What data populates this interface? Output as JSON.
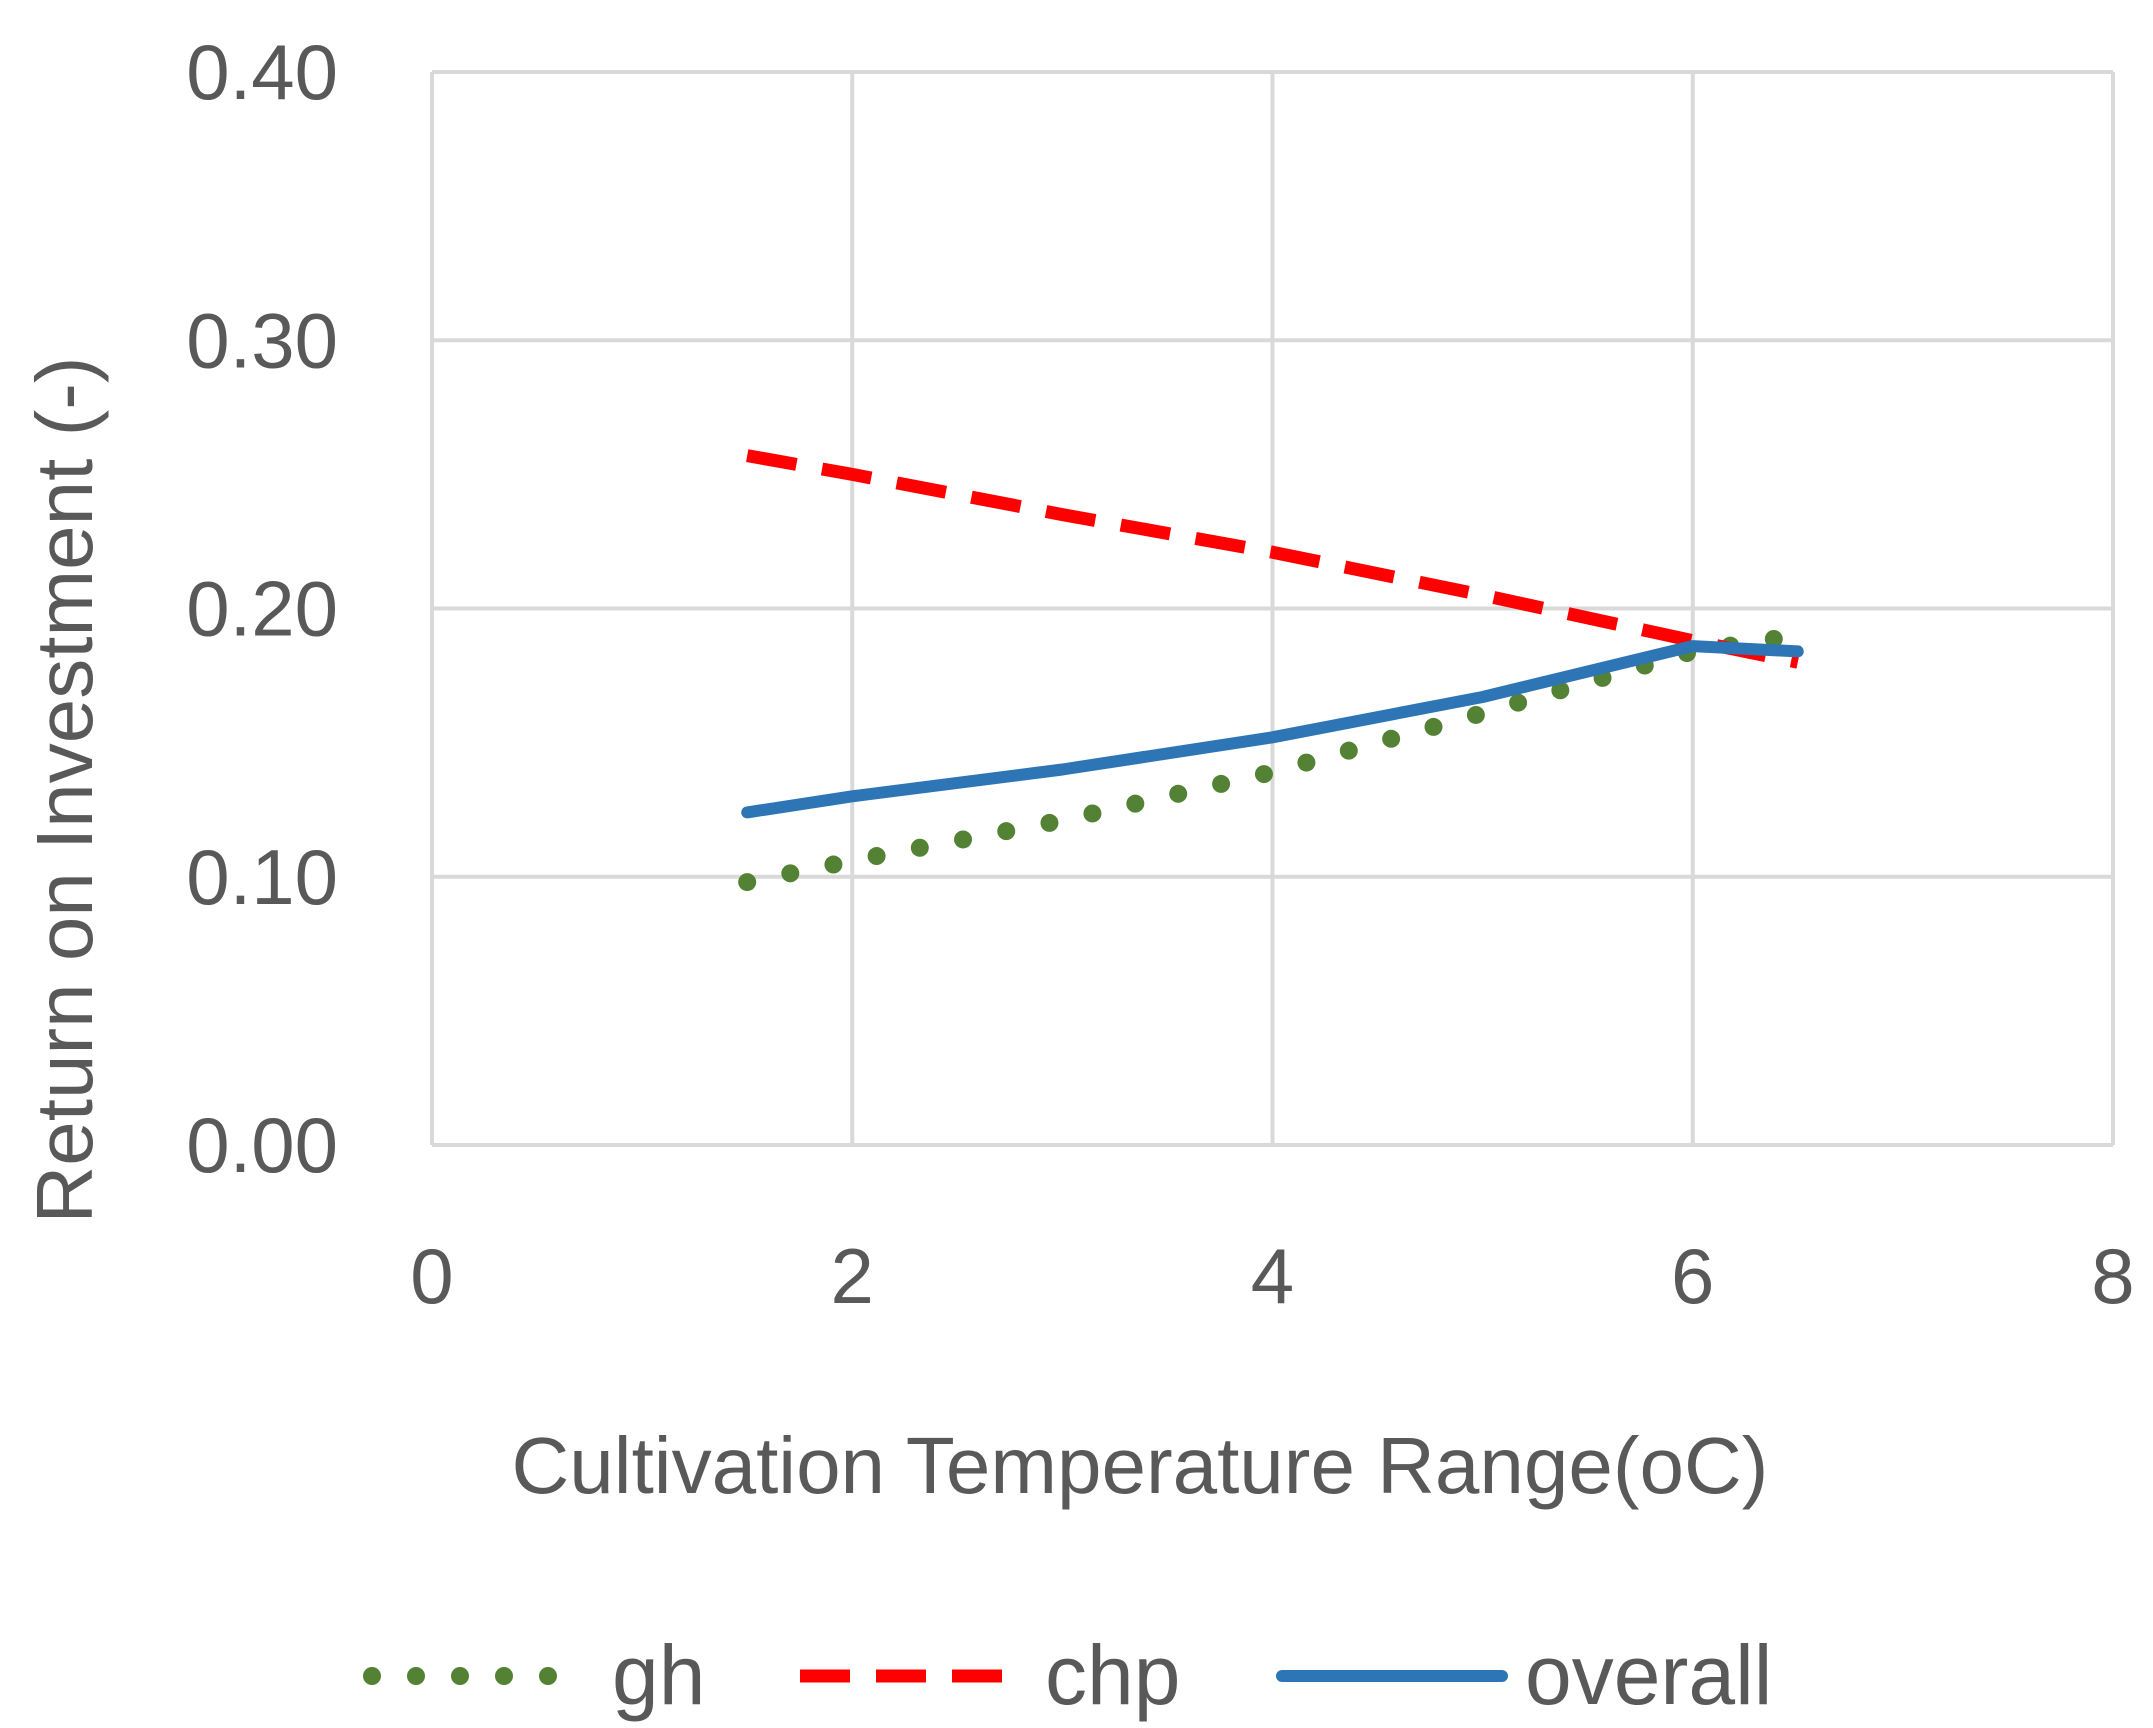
{
  "chart_data": {
    "type": "line",
    "title": "",
    "xlabel": "Cultivation Temperature Range(oC)",
    "ylabel": "Return on Investment (-)",
    "xlim": [
      0,
      8
    ],
    "ylim": [
      0,
      0.4
    ],
    "x_ticks": [
      0,
      2,
      4,
      6,
      8
    ],
    "x_tick_labels": [
      "0",
      "2",
      "4",
      "6",
      "8"
    ],
    "y_ticks": [
      0,
      0.1,
      0.2,
      0.3,
      0.4
    ],
    "y_tick_labels": [
      "0.00",
      "0.10",
      "0.20",
      "0.30",
      "0.40"
    ],
    "grid": true,
    "legend_position": "bottom",
    "series": [
      {
        "name": "gh",
        "style": "dotted",
        "color": "#548235",
        "x": [
          1.5,
          2,
          3,
          4,
          5,
          6,
          6.5
        ],
        "y": [
          0.098,
          0.106,
          0.121,
          0.139,
          0.161,
          0.184,
          0.19
        ]
      },
      {
        "name": "chp",
        "style": "dashed",
        "color": "#ff0000",
        "x": [
          1.5,
          2,
          3,
          4,
          5,
          6,
          6.5
        ],
        "y": [
          0.257,
          0.25,
          0.235,
          0.221,
          0.205,
          0.188,
          0.18
        ]
      },
      {
        "name": "overall",
        "style": "solid",
        "color": "#2e75b6",
        "x": [
          1.5,
          2,
          3,
          4,
          5,
          6,
          6.5
        ],
        "y": [
          0.124,
          0.13,
          0.14,
          0.152,
          0.167,
          0.186,
          0.184
        ]
      }
    ]
  }
}
